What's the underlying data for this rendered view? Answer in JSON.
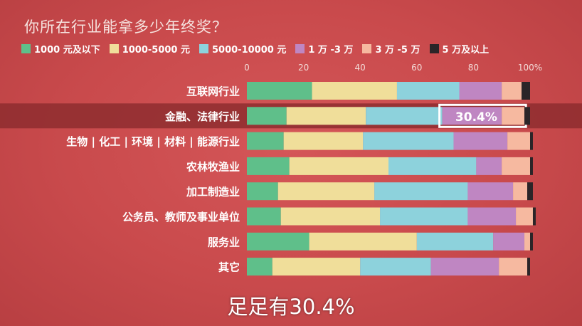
{
  "page": {
    "title": "你所在行业能拿多少年终奖？",
    "subtitle": "足足有30.4%"
  },
  "colors": {
    "background": "#c94a4c",
    "highlight_band": "#8e2d2f",
    "series": [
      "#5fbf8a",
      "#f0de9a",
      "#8dd2dc",
      "#bf86c2",
      "#f6b9a0",
      "#2b2528"
    ]
  },
  "chart_data": {
    "type": "bar",
    "orientation": "horizontal",
    "stacked": true,
    "title": "你所在行业能拿多少年终奖？",
    "xlim": [
      0,
      100
    ],
    "x_ticks": [
      "0",
      "20",
      "40",
      "60",
      "80",
      "100%"
    ],
    "categories": [
      "互联网行业",
      "金融、法律行业",
      "生物 | 化工 | 环境 | 材料 | 能源行业",
      "农林牧渔业",
      "加工制造业",
      "公务员、教师及事业单位",
      "服务业",
      "其它"
    ],
    "series": [
      {
        "name": "1000 元及以下",
        "values": [
          23,
          14,
          13,
          15,
          11,
          12,
          22,
          9
        ]
      },
      {
        "name": "1000-5000 元",
        "values": [
          30,
          28,
          28,
          35,
          34,
          35,
          38,
          31
        ]
      },
      {
        "name": "5000-10000 元",
        "values": [
          22,
          27,
          32,
          31,
          33,
          31,
          27,
          25
        ]
      },
      {
        "name": "1 万 -3 万",
        "values": [
          15,
          21,
          19,
          9,
          16,
          17,
          11,
          24
        ]
      },
      {
        "name": "3 万 -5 万",
        "values": [
          7,
          8,
          8,
          10,
          5,
          6,
          2,
          10
        ]
      },
      {
        "name": "5 万及以上",
        "values": [
          3,
          2,
          1,
          1,
          2,
          1,
          1,
          1
        ]
      }
    ],
    "highlight": {
      "category": "金融、法律行业",
      "series": "1 万 -3 万",
      "label": "30.4%"
    },
    "legend_position": "top",
    "grid": false
  }
}
